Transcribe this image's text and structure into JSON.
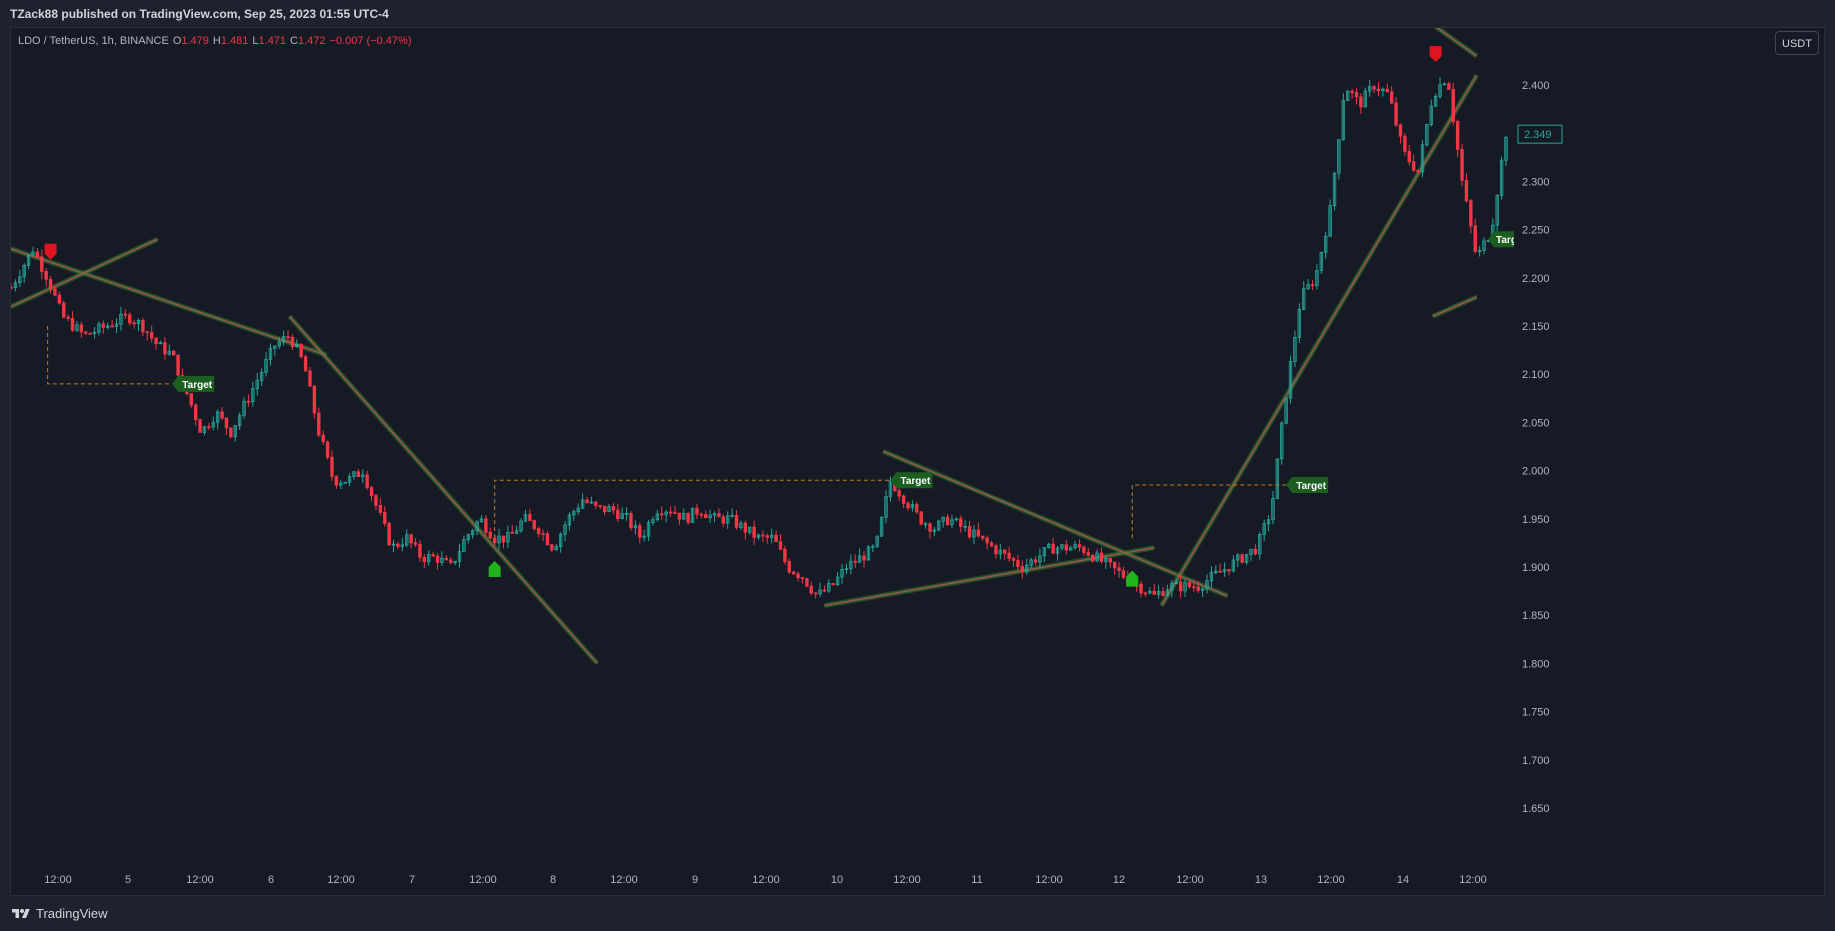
{
  "header": {
    "published": "TZack88 published on TradingView.com, Sep 25, 2023 01:55 UTC-4"
  },
  "legend": {
    "symbol": "LDO / TetherUS, 1h, BINANCE",
    "o_label": "O",
    "o": "1.479",
    "h_label": "H",
    "h": "1.481",
    "l_label": "L",
    "l": "1.471",
    "c_label": "C",
    "c": "1.472",
    "change": "−0.007 (−0.47%)"
  },
  "currency_button": "USDT",
  "footer": {
    "brand": "TradingView"
  },
  "colors": {
    "up": "#26a69a",
    "down": "#f23645",
    "bg": "#161a25",
    "trend": "#4caf50",
    "target_bg": "#1b5e20",
    "dashed": "#c77c1e"
  },
  "chart_data": {
    "type": "candlestick",
    "y_ticks": [
      "2.400",
      "2.350",
      "2.300",
      "2.250",
      "2.200",
      "2.150",
      "2.100",
      "2.050",
      "2.000",
      "1.950",
      "1.900",
      "1.850",
      "1.800",
      "1.750",
      "1.700",
      "1.650"
    ],
    "x_ticks": [
      "12:00",
      "5",
      "12:00",
      "6",
      "12:00",
      "7",
      "12:00",
      "8",
      "12:00",
      "9",
      "12:00",
      "10",
      "12:00",
      "11",
      "12:00",
      "12",
      "12:00",
      "13",
      "12:00",
      "14",
      "12:00"
    ],
    "ylim": [
      1.62,
      2.47
    ],
    "last_price": "2.349",
    "annotation_text": "Target",
    "edge_target_text": "Targ",
    "ohlc_path": [
      [
        0,
        2.19
      ],
      [
        15,
        2.23
      ],
      [
        25,
        2.2
      ],
      [
        35,
        2.16
      ],
      [
        50,
        2.14
      ],
      [
        65,
        2.15
      ],
      [
        80,
        2.16
      ],
      [
        90,
        2.15
      ],
      [
        100,
        2.13
      ],
      [
        110,
        2.12
      ],
      [
        120,
        2.08
      ],
      [
        130,
        2.04
      ],
      [
        140,
        2.06
      ],
      [
        150,
        2.04
      ],
      [
        160,
        2.07
      ],
      [
        170,
        2.1
      ],
      [
        180,
        2.13
      ],
      [
        190,
        2.14
      ],
      [
        200,
        2.11
      ],
      [
        210,
        2.04
      ],
      [
        220,
        1.99
      ],
      [
        230,
        1.99
      ],
      [
        240,
        2.0
      ],
      [
        250,
        1.96
      ],
      [
        260,
        1.92
      ],
      [
        270,
        1.93
      ],
      [
        280,
        1.91
      ],
      [
        290,
        1.91
      ],
      [
        300,
        1.9
      ],
      [
        310,
        1.93
      ],
      [
        320,
        1.95
      ],
      [
        330,
        1.93
      ],
      [
        340,
        1.93
      ],
      [
        350,
        1.95
      ],
      [
        360,
        1.94
      ],
      [
        370,
        1.92
      ],
      [
        380,
        1.95
      ],
      [
        390,
        1.97
      ],
      [
        400,
        1.96
      ],
      [
        410,
        1.96
      ],
      [
        420,
        1.95
      ],
      [
        430,
        1.93
      ],
      [
        440,
        1.96
      ],
      [
        450,
        1.96
      ],
      [
        460,
        1.95
      ],
      [
        470,
        1.96
      ],
      [
        480,
        1.95
      ],
      [
        490,
        1.95
      ],
      [
        500,
        1.94
      ],
      [
        510,
        1.93
      ],
      [
        520,
        1.93
      ],
      [
        530,
        1.9
      ],
      [
        540,
        1.89
      ],
      [
        550,
        1.87
      ],
      [
        560,
        1.88
      ],
      [
        570,
        1.9
      ],
      [
        580,
        1.91
      ],
      [
        590,
        1.92
      ],
      [
        600,
        1.99
      ],
      [
        610,
        1.97
      ],
      [
        620,
        1.95
      ],
      [
        630,
        1.94
      ],
      [
        640,
        1.95
      ],
      [
        650,
        1.94
      ],
      [
        660,
        1.93
      ],
      [
        670,
        1.92
      ],
      [
        680,
        1.91
      ],
      [
        690,
        1.9
      ],
      [
        700,
        1.91
      ],
      [
        710,
        1.92
      ],
      [
        720,
        1.92
      ],
      [
        730,
        1.92
      ],
      [
        740,
        1.91
      ],
      [
        750,
        1.9
      ],
      [
        760,
        1.89
      ],
      [
        770,
        1.88
      ],
      [
        780,
        1.87
      ],
      [
        790,
        1.88
      ],
      [
        800,
        1.88
      ],
      [
        810,
        1.88
      ],
      [
        820,
        1.89
      ],
      [
        830,
        1.9
      ],
      [
        840,
        1.91
      ],
      [
        850,
        1.92
      ],
      [
        860,
        1.96
      ],
      [
        870,
        2.08
      ],
      [
        880,
        2.18
      ],
      [
        890,
        2.2
      ],
      [
        900,
        2.27
      ],
      [
        910,
        2.4
      ],
      [
        920,
        2.38
      ],
      [
        930,
        2.4
      ],
      [
        940,
        2.39
      ],
      [
        950,
        2.33
      ],
      [
        960,
        2.31
      ],
      [
        970,
        2.39
      ],
      [
        980,
        2.41
      ],
      [
        990,
        2.3
      ],
      [
        1000,
        2.22
      ],
      [
        1010,
        2.25
      ],
      [
        1020,
        2.35
      ]
    ],
    "trendlines": [
      {
        "from": [
          0,
          2.23
        ],
        "to": [
          215,
          2.12
        ]
      },
      {
        "from": [
          0,
          2.17
        ],
        "to": [
          100,
          2.24
        ]
      },
      {
        "from": [
          190,
          2.16
        ],
        "to": [
          400,
          1.8
        ]
      },
      {
        "from": [
          555,
          1.86
        ],
        "to": [
          780,
          1.92
        ]
      },
      {
        "from": [
          595,
          2.02
        ],
        "to": [
          830,
          1.87
        ]
      },
      {
        "from": [
          785,
          1.86
        ],
        "to": [
          1000,
          2.41
        ]
      },
      {
        "from": [
          945,
          2.49
        ],
        "to": [
          1000,
          2.43
        ]
      },
      {
        "from": [
          970,
          2.16
        ],
        "to": [
          1000,
          2.18
        ]
      }
    ],
    "targets": [
      {
        "label": "Target",
        "x": 110,
        "y": 2.09,
        "from_x": 25,
        "from_y": 2.15
      },
      {
        "label": "Target",
        "x": 600,
        "y": 1.99,
        "from_x": 330,
        "from_y": 1.93
      },
      {
        "label": "Target",
        "x": 870,
        "y": 1.985,
        "from_x": 765,
        "from_y": 1.93
      }
    ],
    "signals": [
      {
        "type": "sell",
        "x": 27,
        "y": 2.225
      },
      {
        "type": "buy",
        "x": 330,
        "y": 1.9
      },
      {
        "type": "buy",
        "x": 765,
        "y": 1.89
      },
      {
        "type": "sell",
        "x": 972,
        "y": 2.43
      }
    ]
  }
}
